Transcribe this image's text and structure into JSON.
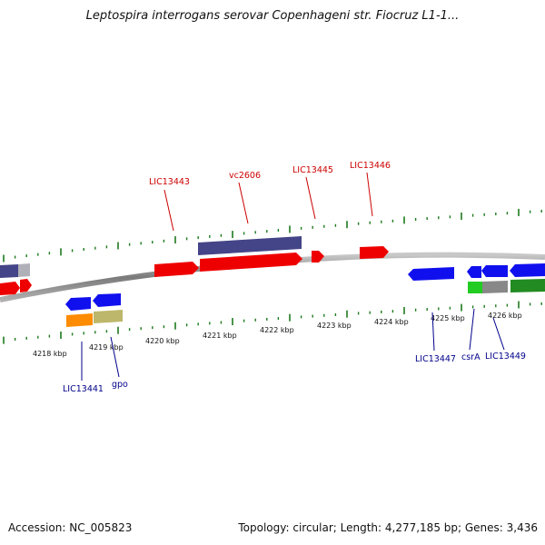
{
  "title": "Leptospira interrogans serovar Copenhageni str. Fiocruz L1-1...",
  "footer": {
    "accession": "Accession: NC_005823",
    "topology": "Topology: circular; Length: 4,277,185 bp; Genes: 3,436"
  },
  "colors": {
    "backbone": "#8a8a8a",
    "tick": "#1e7a1e",
    "label_top": "#cc0000",
    "label_bottom": "#00008b"
  },
  "scale": {
    "unit": "kbp",
    "labels": [
      {
        "kbp": 4218,
        "text": "4218 kbp"
      },
      {
        "kbp": 4219,
        "text": "4219 kbp"
      },
      {
        "kbp": 4220,
        "text": "4220 kbp"
      },
      {
        "kbp": 4221,
        "text": "4221 kbp"
      },
      {
        "kbp": 4222,
        "text": "4222 kbp"
      },
      {
        "kbp": 4223,
        "text": "4223 kbp"
      },
      {
        "kbp": 4224,
        "text": "4224 kbp"
      },
      {
        "kbp": 4225,
        "text": "4225 kbp"
      },
      {
        "kbp": 4226,
        "text": "4226 kbp"
      }
    ]
  },
  "gene_labels_top": [
    "LIC13443",
    "vc2606",
    "LIC13445",
    "LIC13446"
  ],
  "gene_labels_bottom": [
    "LIC13441",
    "gpo",
    "LIC13447",
    "csrA",
    "LIC13449"
  ]
}
